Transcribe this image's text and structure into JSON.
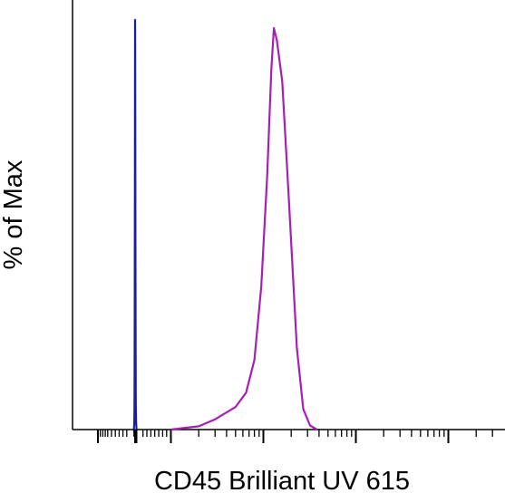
{
  "chart_data": {
    "type": "line",
    "title": "",
    "xlabel": "CD45 Brilliant UV 615",
    "ylabel": "% of Max",
    "x_scale": "logicle",
    "y_range": [
      0,
      100
    ],
    "grid": false,
    "legend": "none",
    "colors": {
      "axis": "#000000",
      "series_1": "#1c1ca0",
      "series_2": "#a61fb4"
    },
    "series": [
      {
        "color": "#1c1ca0",
        "points": [
          [
            -35,
            0
          ],
          [
            -25,
            1
          ],
          [
            -20,
            3
          ],
          [
            -15,
            9
          ],
          [
            -10,
            30
          ],
          [
            -6,
            60
          ],
          [
            -3,
            85
          ],
          [
            0,
            100
          ],
          [
            3,
            96
          ],
          [
            6,
            80
          ],
          [
            10,
            45
          ],
          [
            14,
            20
          ],
          [
            20,
            6
          ],
          [
            28,
            2
          ],
          [
            40,
            0
          ]
        ]
      },
      {
        "color": "#a61fb4",
        "points": [
          [
            1000,
            0
          ],
          [
            2000,
            0.8
          ],
          [
            3000,
            2.5
          ],
          [
            5000,
            5.5
          ],
          [
            6500,
            9
          ],
          [
            8000,
            17
          ],
          [
            9500,
            35
          ],
          [
            11000,
            62
          ],
          [
            12200,
            88
          ],
          [
            13000,
            98
          ],
          [
            14000,
            95
          ],
          [
            16000,
            85
          ],
          [
            19000,
            55
          ],
          [
            23000,
            20
          ],
          [
            27000,
            5
          ],
          [
            32000,
            1
          ],
          [
            38000,
            0
          ]
        ]
      }
    ]
  }
}
